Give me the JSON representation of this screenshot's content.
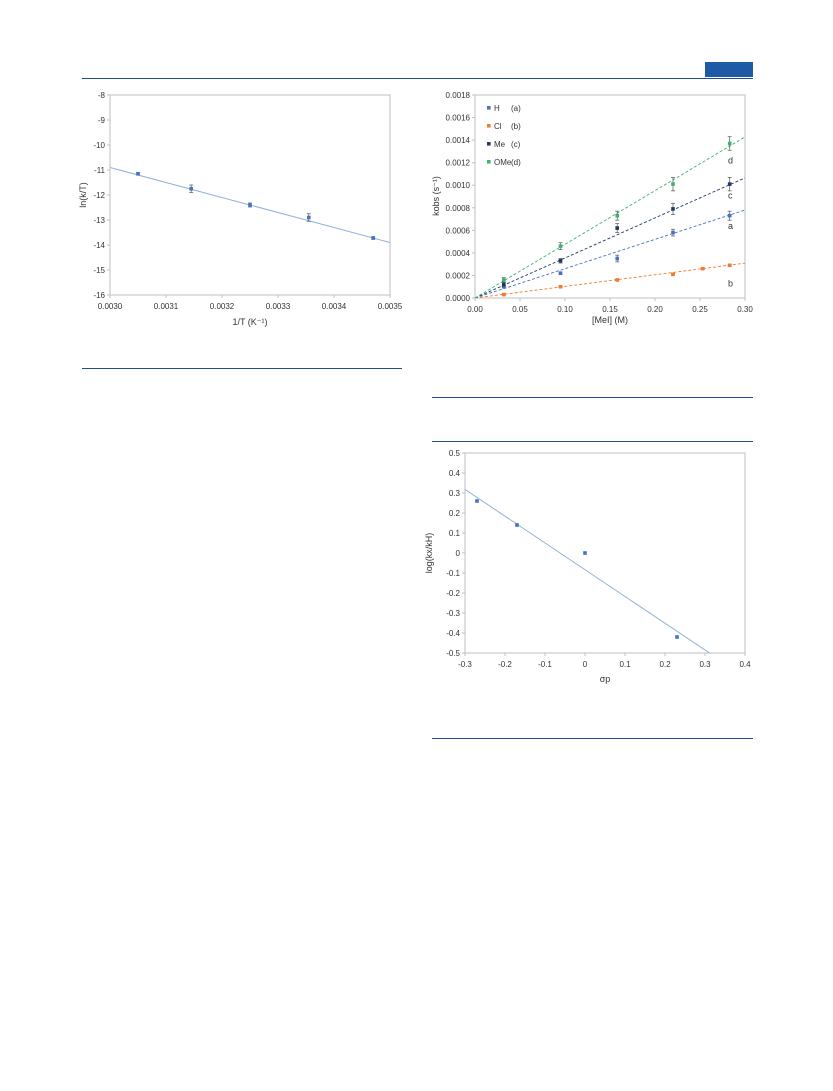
{
  "colors": {
    "accent": "#1f5aa6",
    "rule": "#1f4e8c",
    "fit_line": "#8fb0dc"
  },
  "chart_data": [
    {
      "type": "scatter",
      "title": "",
      "xlabel": "1/T (K⁻¹)",
      "ylabel": "ln(k/T)",
      "xlim": [
        0.003,
        0.0035
      ],
      "ylim": [
        -16,
        -8
      ],
      "x_ticks": [
        "0.0030",
        "0.0031",
        "0.0032",
        "0.0033",
        "0.0034",
        "0.0035"
      ],
      "y_ticks": [
        "-16",
        "-15",
        "-14",
        "-13",
        "-12",
        "-11",
        "-10",
        "-9",
        "-8"
      ],
      "grid": false,
      "series": [
        {
          "color": "#4472c4",
          "x": [
            0.00305,
            0.003145,
            0.00325,
            0.003355,
            0.00347
          ],
          "y": [
            -11.15,
            -11.75,
            -12.4,
            -12.9,
            -13.72
          ],
          "err": [
            0.05,
            0.15,
            0.08,
            0.15,
            0.05
          ]
        }
      ],
      "trendline": {
        "slope": -6000,
        "intercept": 7.1
      }
    },
    {
      "type": "scatter",
      "title": "",
      "xlabel": "[MeI] (M)",
      "ylabel": "kobs (s⁻¹)",
      "xlim": [
        0,
        0.3
      ],
      "ylim": [
        0,
        0.0018
      ],
      "x_ticks": [
        "0.00",
        "0.05",
        "0.10",
        "0.15",
        "0.20",
        "0.25",
        "0.30"
      ],
      "y_ticks": [
        "0.0000",
        "0.0002",
        "0.0004",
        "0.0006",
        "0.0008",
        "0.0010",
        "0.0012",
        "0.0014",
        "0.0016",
        "0.0018"
      ],
      "grid": false,
      "legend": "top-left",
      "series": [
        {
          "name": "H",
          "tag": "(a)",
          "label": "a",
          "color": "#4472c4",
          "x": [
            0.032,
            0.095,
            0.158,
            0.22,
            0.283
          ],
          "y": [
            0.0001,
            0.00022,
            0.00035,
            0.00058,
            0.00073
          ],
          "err": [
            1e-05,
            1e-05,
            3e-05,
            3e-05,
            4e-05
          ],
          "slope": 0.0026
        },
        {
          "name": "Cl",
          "tag": "(b)",
          "label": "b",
          "color": "#ed7d31",
          "x": [
            0.032,
            0.095,
            0.158,
            0.22,
            0.253,
            0.283
          ],
          "y": [
            3e-05,
            0.0001,
            0.00016,
            0.00021,
            0.00026,
            0.00029
          ],
          "err": [
            5e-06,
            5e-06,
            5e-06,
            5e-06,
            5e-06,
            5e-06
          ],
          "slope": 0.00103
        },
        {
          "name": "Me",
          "tag": "(c)",
          "label": "c",
          "color": "#1f3864",
          "x": [
            0.032,
            0.095,
            0.158,
            0.22,
            0.283
          ],
          "y": [
            0.00012,
            0.00033,
            0.00062,
            0.00079,
            0.00101
          ],
          "err": [
            2e-05,
            2e-05,
            4e-05,
            5e-05,
            6e-05
          ],
          "slope": 0.00355
        },
        {
          "name": "OMe",
          "tag": "(d)",
          "label": "d",
          "color": "#3cb371",
          "x": [
            0.032,
            0.095,
            0.158,
            0.22,
            0.283
          ],
          "y": [
            0.00016,
            0.00046,
            0.00073,
            0.00101,
            0.00137
          ],
          "err": [
            2e-05,
            3e-05,
            4e-05,
            6e-05,
            6e-05
          ],
          "slope": 0.00476
        }
      ]
    },
    {
      "type": "scatter",
      "title": "",
      "xlabel": "σp",
      "ylabel": "log(kx/kH)",
      "xlim": [
        -0.3,
        0.4
      ],
      "ylim": [
        -0.5,
        0.5
      ],
      "x_ticks": [
        "-0.3",
        "-0.2",
        "-0.1",
        "0",
        "0.1",
        "0.2",
        "0.3",
        "0.4"
      ],
      "y_ticks": [
        "-0.5",
        "-0.4",
        "-0.3",
        "-0.2",
        "-0.1",
        "0",
        "0.1",
        "0.2",
        "0.3",
        "0.4",
        "0.5"
      ],
      "grid": false,
      "series": [
        {
          "color": "#4472c4",
          "x": [
            -0.27,
            -0.17,
            0.0,
            0.23
          ],
          "y": [
            0.26,
            0.14,
            0.0,
            -0.42
          ]
        }
      ],
      "trendline": {
        "slope": -1.338,
        "intercept": -0.0835
      }
    }
  ]
}
